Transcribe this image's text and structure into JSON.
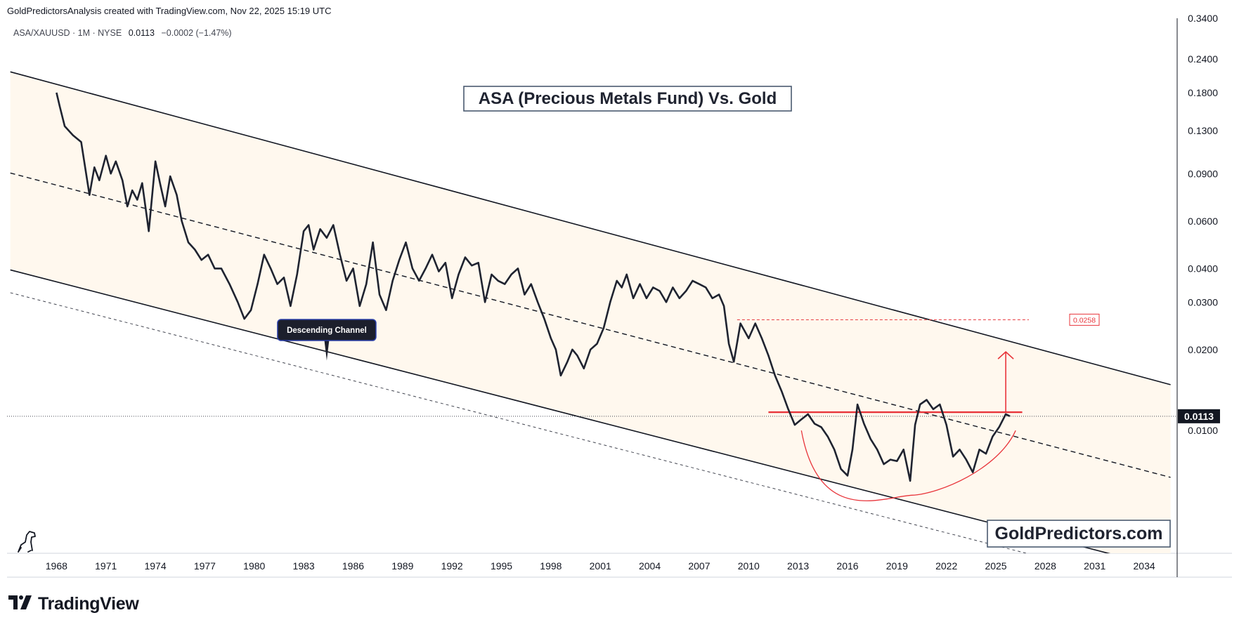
{
  "header": {
    "attribution": "GoldPredictorsAnalysis created with TradingView.com, Nov 22, 2025 15:19 UTC"
  },
  "ticker": {
    "symbol": "ASA/XAUUSD · 1M · NYSE",
    "last": "0.0113",
    "change": "−0.0002 (−1.47%)"
  },
  "footer": {
    "brand": "TradingView"
  },
  "colors": {
    "price": "#1f2330",
    "channel": "#131722",
    "channel_fill": "#fff8ee",
    "accent_red": "#e8343a",
    "annotation_bg": "#1c1f2c",
    "annotation_border": "#2a3ea8"
  },
  "chart_data": {
    "type": "line",
    "title": "ASA (Precious Metals Fund) Vs. Gold",
    "watermark": "GoldPredictors.com",
    "scale": "log",
    "ylim": [
      0.0035,
      0.34
    ],
    "xlim": [
      1965.0,
      2036.0
    ],
    "x_ticks": [
      "1968",
      "1971",
      "1974",
      "1977",
      "1980",
      "1983",
      "1986",
      "1989",
      "1992",
      "1995",
      "1998",
      "2001",
      "2004",
      "2007",
      "2010",
      "2013",
      "2016",
      "2019",
      "2022",
      "2025",
      "2028",
      "2031",
      "2034"
    ],
    "y_ticks": [
      "0.3400",
      "0.2400",
      "0.1800",
      "0.1300",
      "0.0900",
      "0.0600",
      "0.0400",
      "0.0300",
      "0.0200",
      "0.0100"
    ],
    "current_price_label": "0.0113",
    "target_label": "0.0258",
    "annotation": "Descending Channel",
    "series": [
      {
        "name": "ASA/XAUUSD",
        "x": [
          1968.0,
          1968.2,
          1968.5,
          1969.0,
          1969.5,
          1970.0,
          1970.3,
          1970.6,
          1971.0,
          1971.3,
          1971.6,
          1972.0,
          1972.3,
          1972.6,
          1972.9,
          1973.2,
          1973.6,
          1974.0,
          1974.3,
          1974.6,
          1974.9,
          1975.3,
          1975.6,
          1976.0,
          1976.4,
          1976.8,
          1977.2,
          1977.6,
          1978.0,
          1978.5,
          1979.0,
          1979.4,
          1979.8,
          1980.2,
          1980.6,
          1981.0,
          1981.4,
          1981.8,
          1982.2,
          1982.6,
          1983.0,
          1983.3,
          1983.6,
          1984.0,
          1984.4,
          1984.8,
          1985.2,
          1985.6,
          1986.0,
          1986.4,
          1986.8,
          1987.2,
          1987.6,
          1988.0,
          1988.4,
          1988.8,
          1989.2,
          1989.6,
          1990.0,
          1990.4,
          1990.8,
          1991.2,
          1991.6,
          1992.0,
          1992.4,
          1992.8,
          1993.2,
          1993.6,
          1994.0,
          1994.4,
          1994.8,
          1995.2,
          1995.6,
          1996.0,
          1996.4,
          1996.8,
          1997.2,
          1997.6,
          1998.0,
          1998.3,
          1998.6,
          1999.0,
          1999.3,
          1999.6,
          2000.0,
          2000.4,
          2000.8,
          2001.2,
          2001.6,
          2002.0,
          2002.3,
          2002.6,
          2003.0,
          2003.4,
          2003.8,
          2004.2,
          2004.6,
          2005.0,
          2005.4,
          2005.8,
          2006.2,
          2006.6,
          2007.0,
          2007.4,
          2007.8,
          2008.2,
          2008.5,
          2008.8,
          2009.1,
          2009.5,
          2010.0,
          2010.4,
          2010.8,
          2011.2,
          2011.6,
          2012.0,
          2012.4,
          2012.8,
          2013.2,
          2013.6,
          2014.0,
          2014.4,
          2014.8,
          2015.2,
          2015.6,
          2016.0,
          2016.3,
          2016.6,
          2017.0,
          2017.4,
          2017.8,
          2018.2,
          2018.6,
          2019.0,
          2019.4,
          2019.8,
          2020.1,
          2020.4,
          2020.8,
          2021.2,
          2021.6,
          2022.0,
          2022.4,
          2022.8,
          2023.2,
          2023.6,
          2024.0,
          2024.4,
          2024.8,
          2025.2,
          2025.6,
          2025.85
        ],
        "values": [
          0.18,
          0.16,
          0.135,
          0.125,
          0.118,
          0.075,
          0.095,
          0.085,
          0.105,
          0.09,
          0.1,
          0.085,
          0.068,
          0.078,
          0.072,
          0.083,
          0.055,
          0.1,
          0.082,
          0.068,
          0.088,
          0.075,
          0.06,
          0.05,
          0.047,
          0.043,
          0.045,
          0.04,
          0.04,
          0.035,
          0.03,
          0.026,
          0.028,
          0.035,
          0.045,
          0.04,
          0.035,
          0.037,
          0.029,
          0.038,
          0.055,
          0.058,
          0.047,
          0.056,
          0.052,
          0.058,
          0.045,
          0.036,
          0.04,
          0.029,
          0.035,
          0.05,
          0.032,
          0.028,
          0.036,
          0.043,
          0.05,
          0.04,
          0.036,
          0.04,
          0.045,
          0.039,
          0.042,
          0.031,
          0.038,
          0.044,
          0.041,
          0.042,
          0.03,
          0.038,
          0.036,
          0.035,
          0.038,
          0.04,
          0.032,
          0.035,
          0.03,
          0.026,
          0.022,
          0.02,
          0.016,
          0.018,
          0.02,
          0.019,
          0.017,
          0.02,
          0.021,
          0.024,
          0.03,
          0.036,
          0.034,
          0.038,
          0.031,
          0.035,
          0.031,
          0.034,
          0.033,
          0.03,
          0.034,
          0.031,
          0.033,
          0.036,
          0.035,
          0.034,
          0.031,
          0.032,
          0.029,
          0.021,
          0.018,
          0.025,
          0.022,
          0.025,
          0.022,
          0.019,
          0.016,
          0.014,
          0.012,
          0.0105,
          0.011,
          0.0115,
          0.0106,
          0.0103,
          0.0095,
          0.0085,
          0.0072,
          0.0068,
          0.0085,
          0.0125,
          0.0106,
          0.0093,
          0.0085,
          0.0075,
          0.0078,
          0.0077,
          0.0085,
          0.0065,
          0.0105,
          0.0125,
          0.013,
          0.012,
          0.0125,
          0.0105,
          0.008,
          0.0085,
          0.0078,
          0.007,
          0.0085,
          0.0082,
          0.0095,
          0.0103,
          0.0115,
          0.0113
        ]
      }
    ]
  }
}
